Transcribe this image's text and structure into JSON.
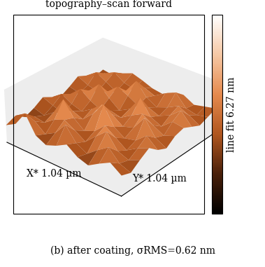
{
  "chart_data": {
    "type": "surface3d",
    "title": "topography–scan forward",
    "x_label": "X* 1.04 µm",
    "y_label": "Y* 1.04 µm",
    "colorbar_label": "line fit 6.27 nm",
    "caption": "(b) after coating, σRMS=0.62 nm",
    "x": [
      0,
      0.095,
      0.189,
      0.284,
      0.378,
      0.473,
      0.567,
      0.662,
      0.756,
      0.851,
      0.945,
      1.04
    ],
    "y": [
      0,
      0.095,
      0.189,
      0.284,
      0.378,
      0.473,
      0.567,
      0.662,
      0.756,
      0.851,
      0.945,
      1.04
    ],
    "z": [
      [
        2.1,
        2.8,
        4.6,
        2.5,
        1.9,
        2.4,
        3.1,
        2.2,
        1.8,
        2.6,
        3.3,
        2.4
      ],
      [
        2.6,
        3.4,
        3.0,
        2.0,
        2.7,
        4.2,
        2.6,
        1.9,
        2.9,
        3.8,
        2.5,
        2.0
      ],
      [
        1.8,
        2.4,
        2.2,
        3.1,
        3.6,
        2.9,
        2.1,
        3.3,
        4.4,
        2.7,
        2.2,
        2.8
      ],
      [
        2.3,
        1.9,
        2.8,
        4.9,
        3.2,
        2.2,
        2.7,
        3.9,
        3.0,
        2.1,
        2.9,
        3.5
      ],
      [
        3.0,
        2.5,
        2.1,
        2.9,
        2.4,
        3.6,
        5.2,
        3.1,
        2.3,
        2.6,
        3.7,
        2.6
      ],
      [
        2.4,
        3.3,
        2.6,
        2.2,
        3.0,
        4.1,
        3.4,
        2.5,
        2.9,
        4.6,
        2.8,
        2.1
      ],
      [
        1.9,
        2.7,
        3.8,
        2.9,
        2.3,
        2.7,
        2.4,
        3.2,
        3.9,
        3.1,
        2.4,
        2.9
      ],
      [
        2.5,
        2.2,
        3.0,
        4.3,
        3.1,
        2.1,
        2.8,
        4.7,
        2.9,
        2.3,
        3.4,
        3.2
      ],
      [
        3.2,
        2.6,
        2.3,
        2.8,
        3.9,
        3.3,
        2.6,
        2.9,
        2.4,
        3.0,
        4.1,
        2.7
      ],
      [
        2.7,
        3.6,
        2.9,
        2.2,
        2.8,
        4.5,
        3.0,
        2.3,
        2.8,
        3.5,
        2.9,
        2.2
      ],
      [
        2.0,
        2.9,
        3.5,
        2.7,
        2.4,
        3.1,
        2.6,
        3.4,
        4.0,
        2.6,
        2.3,
        2.6
      ],
      [
        2.3,
        2.1,
        2.8,
        3.3,
        2.9,
        2.4,
        2.2,
        2.9,
        3.1,
        2.4,
        2.7,
        3.0
      ]
    ],
    "xlim": [
      0,
      1.04
    ],
    "ylim": [
      0,
      1.04
    ],
    "zlim": [
      0,
      6.27
    ],
    "color_range": [
      0,
      6.27
    ],
    "tick_labels": false,
    "grid": true
  }
}
